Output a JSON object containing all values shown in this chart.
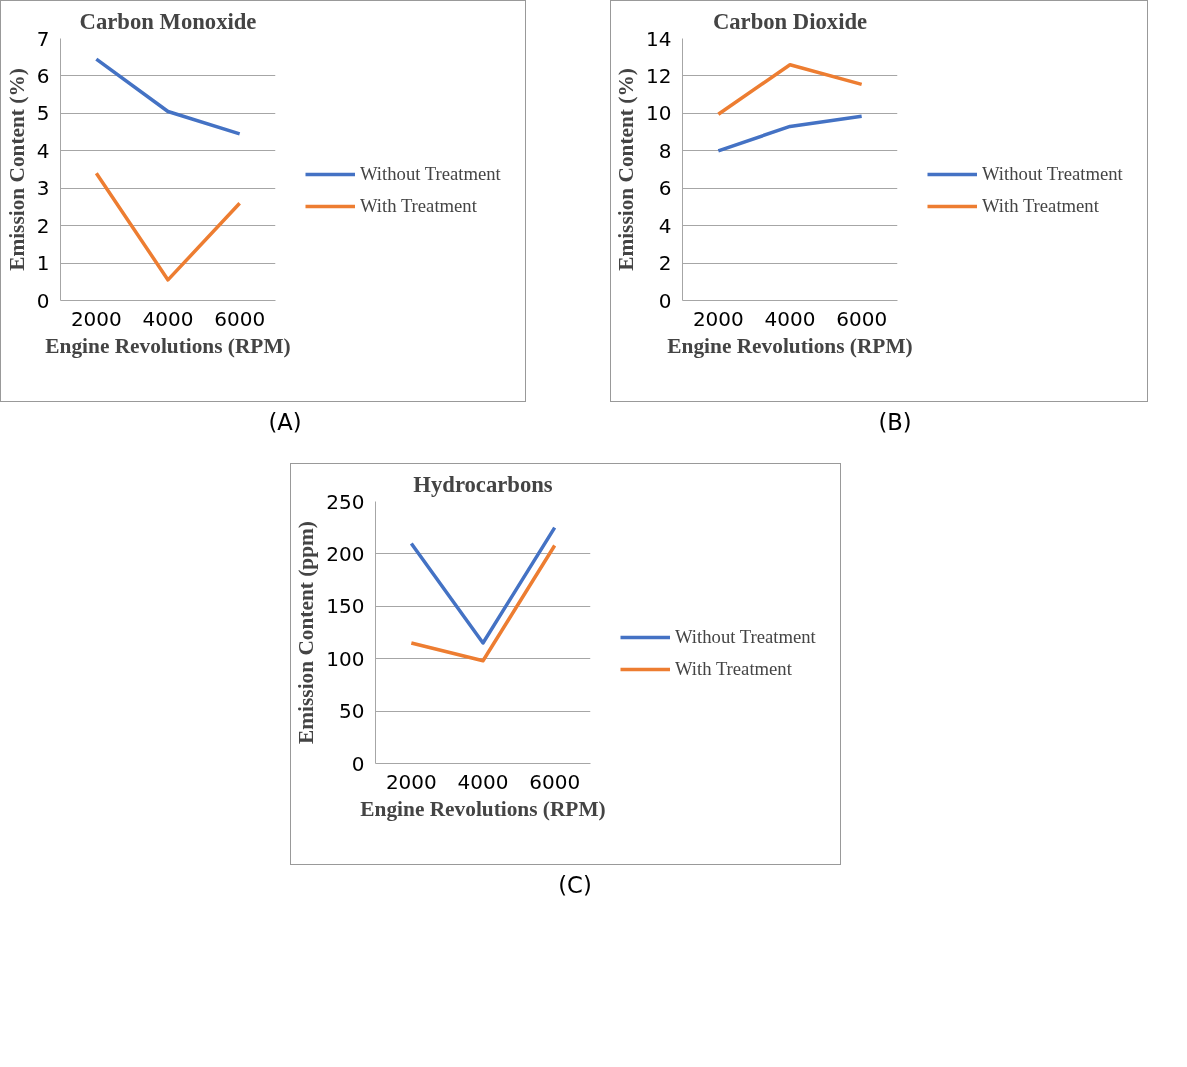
{
  "chart_data": [
    {
      "type": "line",
      "title": "Carbon Monoxide",
      "xlabel": "Engine Revolutions (RPM)",
      "ylabel": "Emission Content (%)",
      "categories": [
        "2000",
        "4000",
        "6000"
      ],
      "series": [
        {
          "name": "Without Treatment",
          "color": "#4472c4",
          "values": [
            6.45,
            5.05,
            4.45
          ]
        },
        {
          "name": "With Treatment",
          "color": "#ed7d31",
          "values": [
            3.4,
            0.55,
            2.6
          ]
        }
      ],
      "ylim": [
        0,
        7
      ],
      "yticks": [
        0,
        1,
        2,
        3,
        4,
        5,
        6,
        7
      ],
      "grid": "y",
      "legend": "right",
      "marker": "none",
      "line_style": "solid",
      "annotations": [
        "(A)"
      ]
    },
    {
      "type": "line",
      "title": "Carbon Dioxide",
      "xlabel": "Engine Revolutions (RPM)",
      "ylabel": "Emission Content (%)",
      "categories": [
        "2000",
        "4000",
        "6000"
      ],
      "series": [
        {
          "name": "Without Treatment",
          "color": "#4472c4",
          "values": [
            8.0,
            9.3,
            9.85
          ]
        },
        {
          "name": "With Treatment",
          "color": "#ed7d31",
          "values": [
            9.95,
            12.6,
            11.55
          ]
        }
      ],
      "ylim": [
        0,
        14
      ],
      "yticks": [
        0,
        2,
        4,
        6,
        8,
        10,
        12,
        14
      ],
      "grid": "y",
      "legend": "right",
      "marker": "none",
      "line_style": "solid",
      "annotations": [
        "(B)"
      ]
    },
    {
      "type": "line",
      "title": "Hydrocarbons",
      "xlabel": "Engine Revolutions (RPM)",
      "ylabel": "Emission Content (ppm)",
      "categories": [
        "2000",
        "4000",
        "6000"
      ],
      "series": [
        {
          "name": "Without Treatment",
          "color": "#4472c4",
          "values": [
            210,
            115,
            225
          ]
        },
        {
          "name": "With Treatment",
          "color": "#ed7d31",
          "values": [
            115,
            98,
            208
          ]
        }
      ],
      "ylim": [
        0,
        250
      ],
      "yticks": [
        0,
        50,
        100,
        150,
        200,
        250
      ],
      "grid": "y",
      "legend": "right",
      "marker": "none",
      "line_style": "solid",
      "annotations": [
        "(C)"
      ]
    }
  ]
}
